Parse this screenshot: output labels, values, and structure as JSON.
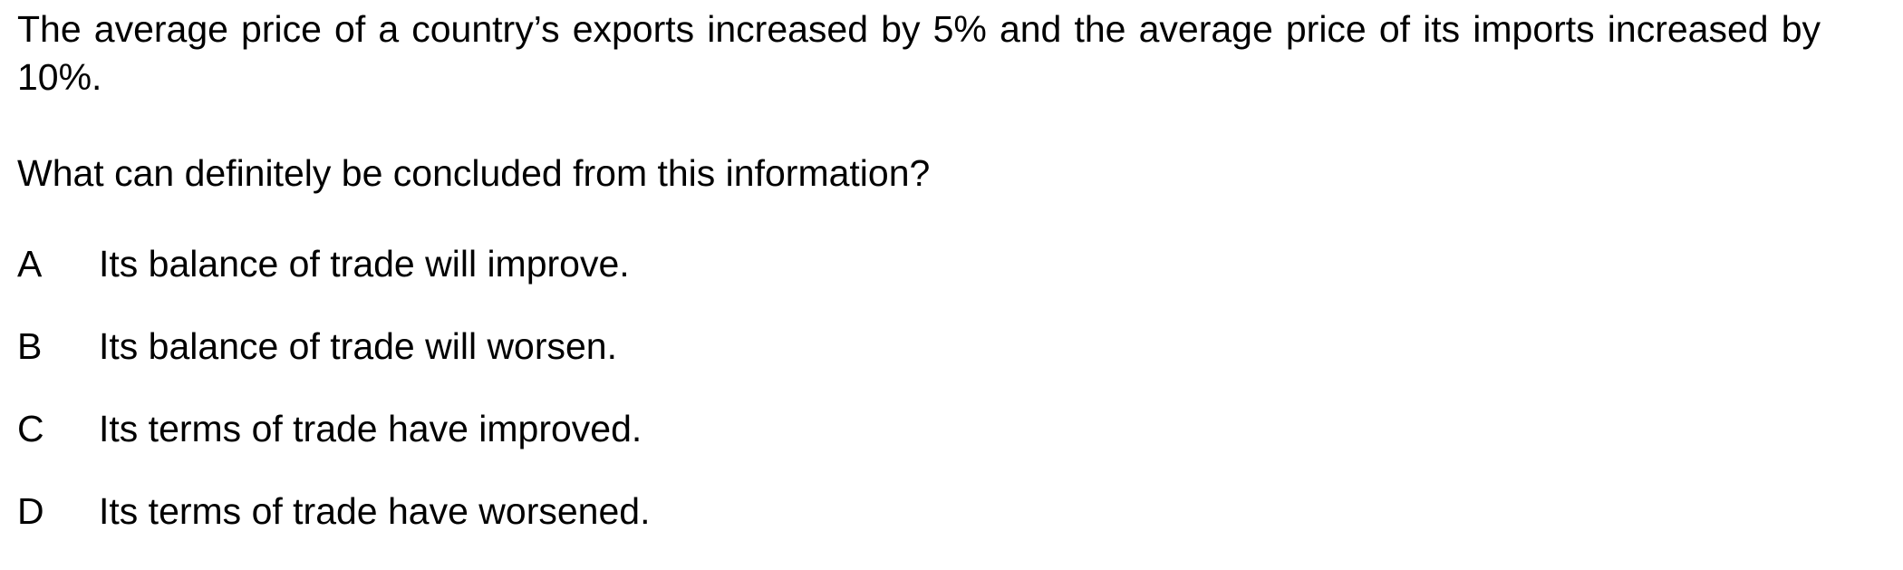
{
  "question": {
    "stem": "The average price of a country’s exports increased by 5% and the average price of its imports increased by 10%.",
    "prompt": "What can definitely be concluded from this information?",
    "options": [
      {
        "letter": "A",
        "text": "Its balance of trade will improve."
      },
      {
        "letter": "B",
        "text": "Its balance of trade will worsen."
      },
      {
        "letter": "C",
        "text": "Its terms of trade have improved."
      },
      {
        "letter": "D",
        "text": "Its terms of trade have worsened."
      }
    ]
  }
}
